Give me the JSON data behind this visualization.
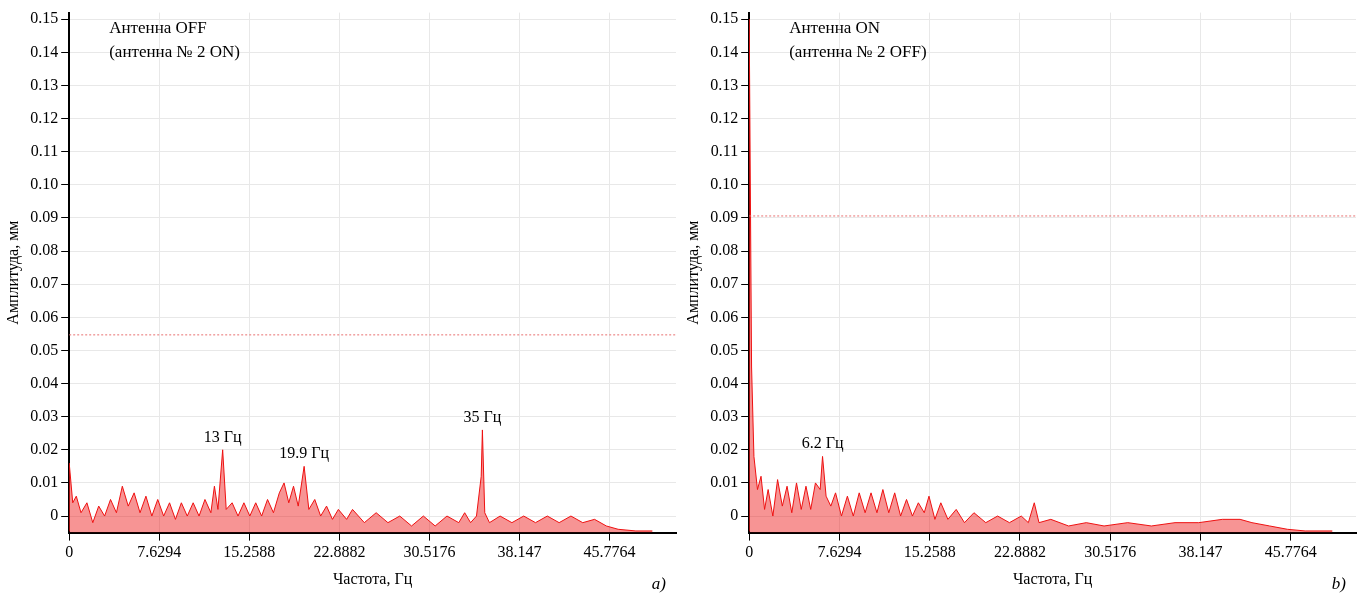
{
  "chart_data": [
    {
      "type": "area",
      "title": "Антенна OFF",
      "subtitle": "(антенна № 2 ON)",
      "xlabel": "Частота, Гц",
      "ylabel": "Амплитуда, мм",
      "x": [
        0,
        0,
        0.3,
        0.6,
        1,
        1.5,
        2,
        2.5,
        3,
        3.5,
        4,
        4.5,
        5,
        5.5,
        6,
        6.5,
        7,
        7.5,
        8,
        8.5,
        9,
        9.5,
        10,
        10.5,
        11,
        11.5,
        12,
        12.3,
        12.6,
        13,
        13.3,
        13.8,
        14.3,
        14.8,
        15.3,
        15.8,
        16.3,
        16.8,
        17.3,
        17.8,
        18.2,
        18.6,
        19,
        19.4,
        19.9,
        20.3,
        20.8,
        21.3,
        21.8,
        22.3,
        22.8,
        23.5,
        24,
        25,
        26,
        27,
        28,
        29,
        30,
        31,
        32,
        33,
        33.5,
        34,
        34.5,
        34.9,
        35,
        35.2,
        35.6,
        36.5,
        37.5,
        38.5,
        39.5,
        40.5,
        41.5,
        42.5,
        43.5,
        44.5,
        45.5,
        46.5,
        48,
        49.4
      ],
      "series": [
        {
          "color": "#ee1111",
          "values": [
            -0.0045,
            0.016,
            0.004,
            0.006,
            0.001,
            0.004,
            -0.002,
            0.003,
            0.0,
            0.005,
            0.001,
            0.009,
            0.003,
            0.007,
            0.001,
            0.006,
            0.0,
            0.005,
            0.0,
            0.004,
            -0.001,
            0.004,
            0.0,
            0.004,
            0.0,
            0.005,
            0.001,
            0.009,
            0.002,
            0.02,
            0.002,
            0.004,
            0.0,
            0.004,
            0.0,
            0.004,
            0.0,
            0.005,
            0.001,
            0.007,
            0.01,
            0.004,
            0.009,
            0.003,
            0.015,
            0.002,
            0.005,
            0.0,
            0.003,
            -0.001,
            0.002,
            -0.001,
            0.002,
            -0.002,
            0.001,
            -0.002,
            0.0,
            -0.003,
            0.0,
            -0.003,
            0.0,
            -0.002,
            0.001,
            -0.002,
            0.0,
            0.012,
            0.026,
            0.001,
            -0.002,
            0.0,
            -0.002,
            0.0,
            -0.002,
            0.0,
            -0.002,
            0.0,
            -0.002,
            -0.001,
            -0.003,
            -0.004,
            -0.0045,
            -0.0045
          ]
        }
      ],
      "xlim": [
        0,
        51.4
      ],
      "xticks": [
        0,
        7.6294,
        15.2588,
        22.8882,
        30.5176,
        38.147,
        45.7764
      ],
      "ylim": [
        -0.005,
        0.152
      ],
      "yticks": [
        0,
        0.01,
        0.02,
        0.03,
        0.04,
        0.05,
        0.06,
        0.07,
        0.08,
        0.09,
        {
          "value": 0.1,
          "label": "0.10"
        },
        0.11,
        0.12,
        0.13,
        0.14,
        0.15
      ],
      "grid": true,
      "legend": false,
      "ref_lines": [
        {
          "axis": "y",
          "value": 0.0547,
          "color": "#e87070",
          "line_style": "dotted"
        }
      ],
      "annotations": [
        {
          "text": "13 Гц",
          "x": 13,
          "y": 0.02
        },
        {
          "text": "19.9 Гц",
          "x": 19.9,
          "y": 0.015
        },
        {
          "text": "35 Гц",
          "x": 35,
          "y": 0.026
        },
        "a)"
      ]
    },
    {
      "type": "area",
      "title": "Антенна ON",
      "subtitle": "(антенна № 2 OFF)",
      "xlabel": "Частота, Гц",
      "ylabel": "Амплитуда, мм",
      "x": [
        0,
        0,
        0.2,
        0.4,
        0.7,
        1,
        1.3,
        1.6,
        2,
        2.4,
        2.8,
        3.2,
        3.6,
        4,
        4.4,
        4.8,
        5.2,
        5.6,
        6,
        6.2,
        6.5,
        6.9,
        7.3,
        7.8,
        8.3,
        8.8,
        9.3,
        9.8,
        10.3,
        10.8,
        11.3,
        11.8,
        12.3,
        12.8,
        13.3,
        13.8,
        14.3,
        14.8,
        15.2,
        15.7,
        16.2,
        16.8,
        17.5,
        18.2,
        19,
        20,
        21,
        22,
        23,
        23.6,
        24.1,
        24.5,
        25.5,
        27,
        28.5,
        30,
        32,
        34,
        36,
        38,
        40,
        41.5,
        42.5,
        44,
        45.5,
        47,
        49.3
      ],
      "series": [
        {
          "color": "#ee1111",
          "values": [
            -0.0045,
            0.15,
            0.045,
            0.018,
            0.008,
            0.012,
            0.002,
            0.008,
            0.0,
            0.011,
            0.003,
            0.009,
            0.001,
            0.01,
            0.002,
            0.009,
            0.002,
            0.01,
            0.008,
            0.018,
            0.006,
            0.003,
            0.007,
            0.0,
            0.006,
            0.0,
            0.007,
            0.001,
            0.007,
            0.001,
            0.008,
            0.001,
            0.007,
            0.0,
            0.005,
            0.0,
            0.004,
            0.001,
            0.006,
            -0.001,
            0.004,
            -0.001,
            0.002,
            -0.002,
            0.001,
            -0.002,
            0.0,
            -0.002,
            0.0,
            -0.002,
            0.004,
            -0.002,
            -0.001,
            -0.003,
            -0.002,
            -0.003,
            -0.002,
            -0.003,
            -0.002,
            -0.002,
            -0.001,
            -0.001,
            -0.002,
            -0.003,
            -0.004,
            -0.0045,
            -0.0045
          ]
        }
      ],
      "xlim": [
        0,
        51.3
      ],
      "xticks": [
        0,
        7.6294,
        15.2588,
        22.8882,
        30.5176,
        38.147,
        45.7764
      ],
      "ylim": [
        -0.005,
        0.152
      ],
      "yticks": [
        0,
        0.01,
        0.02,
        0.03,
        0.04,
        0.05,
        0.06,
        0.07,
        0.08,
        0.09,
        {
          "value": 0.1,
          "label": "0.10"
        },
        0.11,
        0.12,
        0.13,
        0.14,
        0.15
      ],
      "grid": true,
      "legend": false,
      "ref_lines": [
        {
          "axis": "y",
          "value": 0.0906,
          "color": "#e87070",
          "line_style": "dotted"
        }
      ],
      "annotations": [
        {
          "text": "6.2 Гц",
          "x": 6.2,
          "y": 0.018
        },
        "b)"
      ]
    }
  ]
}
